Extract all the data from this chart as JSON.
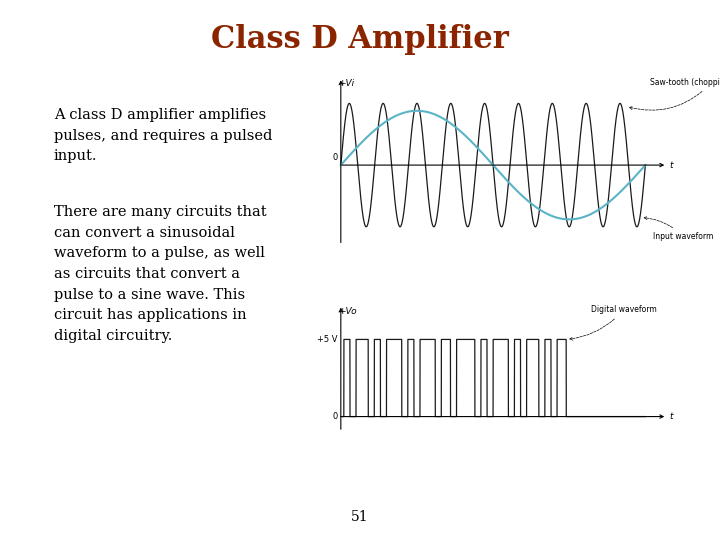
{
  "title": "Class D Amplifier",
  "title_color": "#8B2500",
  "title_fontsize": 22,
  "para1": "A class D amplifier amplifies\npulses, and requires a pulsed\ninput.",
  "para2": "There are many circuits that\ncan convert a sinusoidal\nwaveform to a pulse, as well\nas circuits that convert a\npulse to a sine wave. This\ncircuit has applications in\ndigital circuitry.",
  "text_fontsize": 10.5,
  "page_number": "51",
  "background_color": "#ffffff",
  "plot1_ylabel": "+Vi",
  "plot2_ylabel": "+Vo",
  "plot1_annotation1": "Saw-tooth (chopping) waveform",
  "plot1_annotation2": "Input waveform",
  "plot2_annotation": "Digital waveform",
  "plot2_5v_label": "+5 V",
  "plot2_0_label": "0",
  "plot1_0_label": "0",
  "sine_color": "#5ab4c8",
  "chop_color": "#1a1a1a",
  "digital_color": "#1a1a1a",
  "axis_color": "#1a1a1a"
}
